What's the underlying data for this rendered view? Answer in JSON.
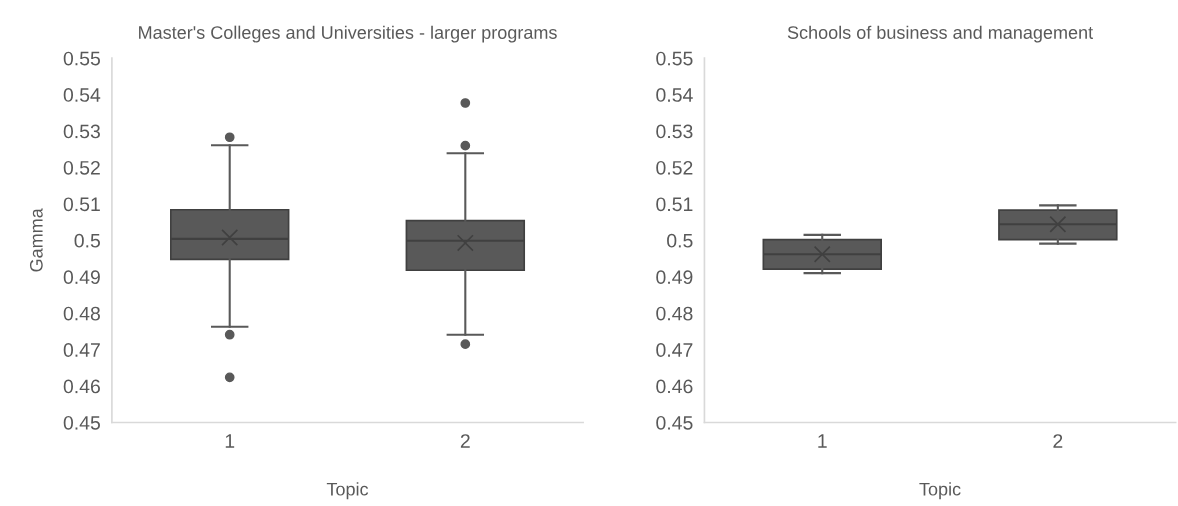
{
  "chart_data": [
    {
      "type": "box",
      "title": "Master's Colleges and Universities - larger programs",
      "xlabel": "Topic",
      "ylabel": "Gamma",
      "categories": [
        "1",
        "2"
      ],
      "color": "#595959",
      "boxes": [
        {
          "low": 0.4763,
          "q1": 0.4948,
          "median": 0.5004,
          "q3": 0.5084,
          "high": 0.5261,
          "mean": 0.5008,
          "outliers": [
            0.5283,
            0.4741,
            0.4624
          ]
        },
        {
          "low": 0.4741,
          "q1": 0.4918,
          "median": 0.4999,
          "q3": 0.5054,
          "high": 0.5239,
          "mean": 0.4993,
          "outliers": [
            0.5377,
            0.526,
            0.4715
          ]
        }
      ],
      "ylim": [
        0.45,
        0.55
      ],
      "yticks": [
        0.45,
        0.46,
        0.47,
        0.48,
        0.49,
        0.5,
        0.51,
        0.52,
        0.53,
        0.54,
        0.55
      ],
      "grid": false
    },
    {
      "type": "box",
      "title": "Schools of business and management",
      "xlabel": "Topic",
      "categories": [
        "1",
        "2"
      ],
      "color": "#595959",
      "boxes": [
        {
          "low": 0.491,
          "q1": 0.4921,
          "median": 0.4962,
          "q3": 0.5002,
          "high": 0.5015,
          "mean": 0.4962
        },
        {
          "low": 0.4991,
          "q1": 0.5002,
          "median": 0.5044,
          "q3": 0.5083,
          "high": 0.5096,
          "mean": 0.5044
        }
      ],
      "ylim": [
        0.45,
        0.55
      ],
      "yticks": [
        0.45,
        0.46,
        0.47,
        0.48,
        0.49,
        0.5,
        0.51,
        0.52,
        0.53,
        0.54,
        0.55
      ],
      "grid": false
    }
  ]
}
